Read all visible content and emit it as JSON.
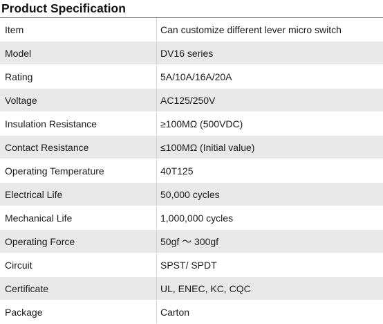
{
  "page": {
    "title": "Product Specification"
  },
  "spec_table": {
    "rows": [
      {
        "key": "Item",
        "value": "Can customize different lever micro switch"
      },
      {
        "key": "Model",
        "value": "DV16 series"
      },
      {
        "key": "Rating",
        "value": "5A/10A/16A/20A"
      },
      {
        "key": "Voltage",
        "value": "AC125/250V"
      },
      {
        "key": "Insulation Resistance",
        "value": "≥100MΩ (500VDC)"
      },
      {
        "key": "Contact Resistance",
        "value": "≤100MΩ (Initial value)"
      },
      {
        "key": "Operating Temperature",
        "value": "40T125"
      },
      {
        "key": "Electrical Life",
        "value": "50,000 cycles"
      },
      {
        "key": "Mechanical Life",
        "value": "1,000,000 cycles"
      },
      {
        "key": "Operating Force",
        "value": "50gf ～ 300gf"
      },
      {
        "key": "Circuit",
        "value": "SPST/ SPDT"
      },
      {
        "key": "Certificate",
        "value": "UL, ENEC, KC, CQC"
      },
      {
        "key": "Package",
        "value": "Carton"
      }
    ]
  },
  "colors": {
    "title_text": "#111111",
    "text": "#1a1a1a",
    "row_stripe": "#e8e8e8",
    "row_plain": "#ffffff",
    "rule": "#7d7d7d"
  }
}
